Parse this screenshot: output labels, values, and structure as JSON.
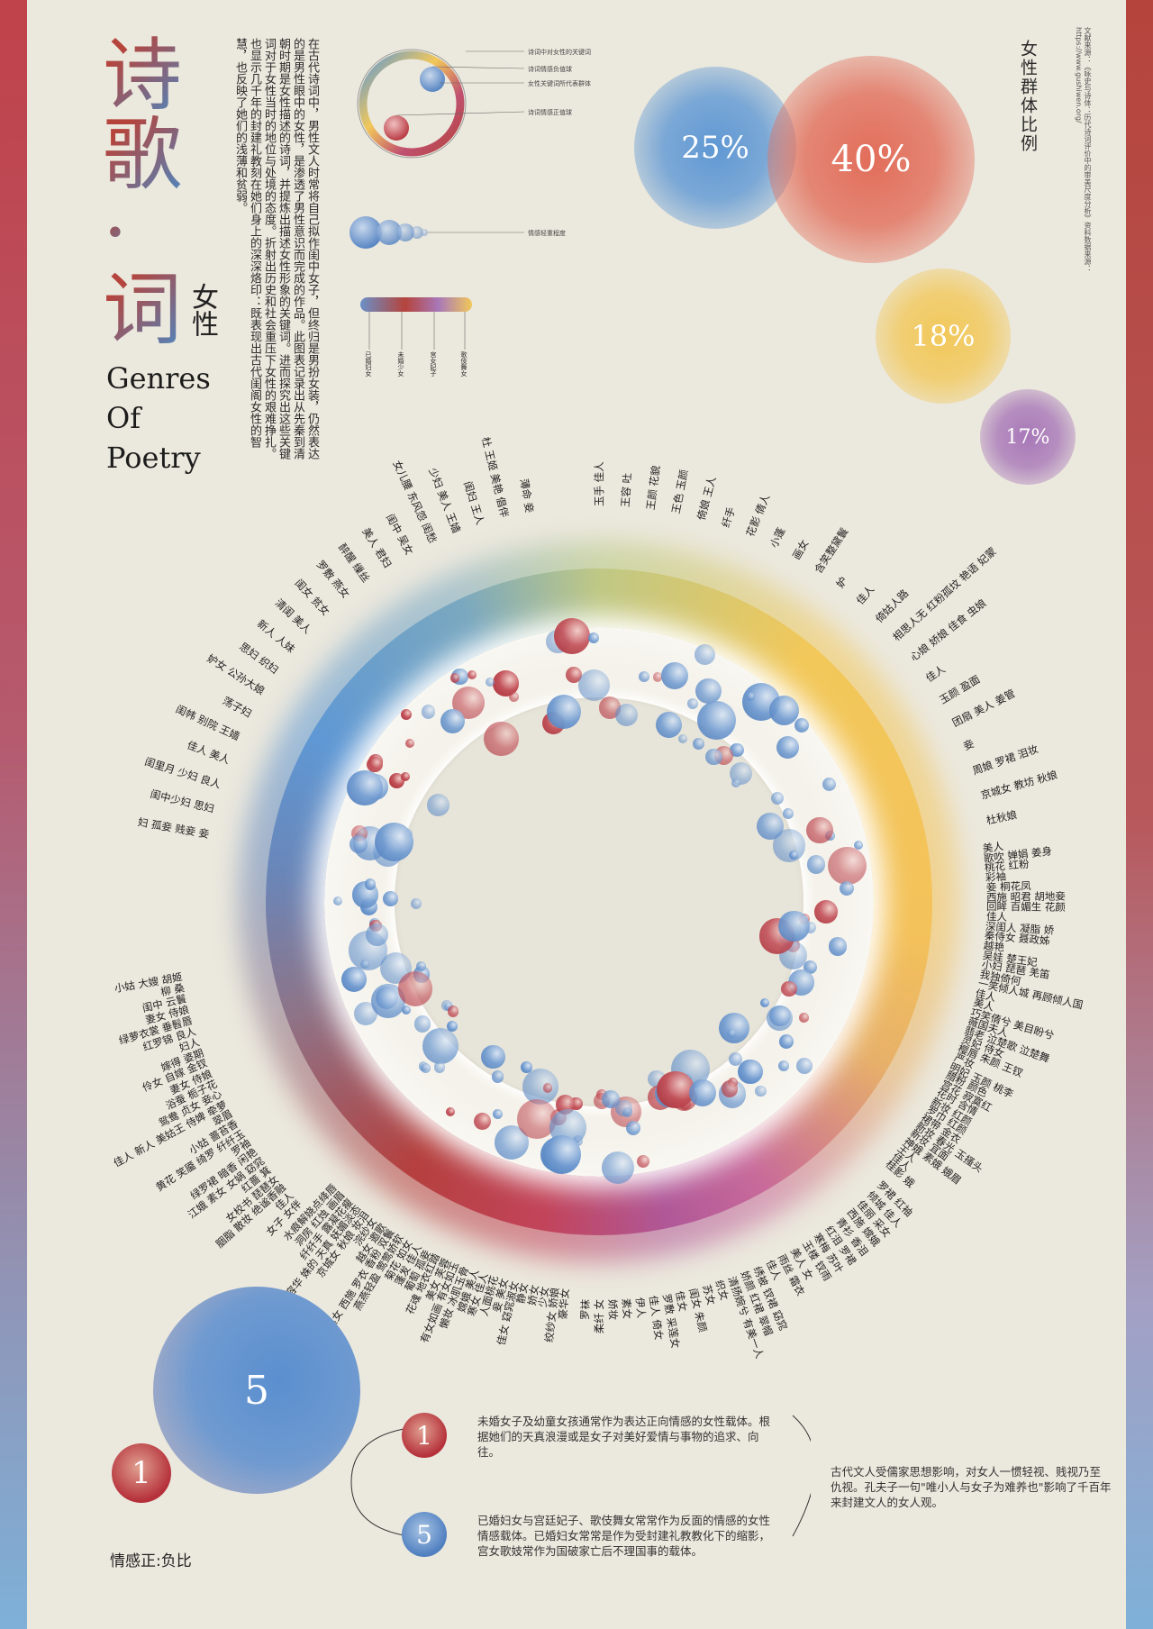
{
  "title": {
    "char1": "诗",
    "char2": "歌",
    "dot": "·",
    "char3": "词",
    "sub": "女性",
    "en1": "Genres",
    "en2": "Of",
    "en3": "Poetry"
  },
  "intro": "在古代诗词中，男性文人时常将自己拟作闺中女子，但终归是男扮女装，仍然表达的是男性眼中的女性，是渗透了男性意识而完成的作品。此图表记录出从先秦到清朝时期是女性描述的诗词，并提炼出描述女性形象的关键词。进而探究出这些关键词对于女性当时的地位与处境的态度。折射出历史和社会重压下女性的艰难挣扎。也显示几千年的封建礼教刻在她们身上的深深烙印：既表现出古代闺阁女性的智慧，也反映了她们的浅薄和贫弱。",
  "legend": {
    "ring_labels": [
      "诗词中对女性的关键词",
      "诗词情感负值球",
      "女性关键词所代表群体",
      "诗词情感正值球"
    ],
    "weight_label": "情感轻重程度",
    "groups": [
      "已婚妇女",
      "未婚少女",
      "宫女妃子",
      "歌伎舞女"
    ]
  },
  "ratio_title": "女性群体比例",
  "ratios": [
    {
      "label": "25%",
      "color": "#5f98d4"
    },
    {
      "label": "40%",
      "color": "#e26d5a"
    },
    {
      "label": "18%",
      "color": "#f2c85a"
    },
    {
      "label": "17%",
      "color": "#a878b8"
    }
  ],
  "source": "文献来源：《咏史与诗体：历代诗词评价中的审美尺度分析》资料数据来源：https://www.gushiwen.org/",
  "keywords": {
    "topleft": [
      "妇 孤妾 贱妾 妾",
      "闺中少妇 思妇",
      "闺里月 少妇 良人",
      "佳人 美人",
      "闺帏 别院 王嫱",
      "荡子妇",
      "妒女 公孙大娘",
      "思妇 织妇",
      "新人 人妹",
      "清闺 美人",
      "闺女 贫女",
      "罗敷 燕女",
      "醉醒 缫丝",
      "美人 君妇",
      "闺中 吴女",
      "女儿腰 东风怨 闺愁",
      "少妇 美人 王嫱",
      "闺妇 王人",
      "杜 王姬 美艳 倡伴",
      "薄命 妾"
    ],
    "left": [
      "小姑 大嫂 胡姬",
      "柳 桑",
      "闺中 云鬟",
      "妻女 侍娘",
      "绿萝衣裳 垂髫唇",
      "红罗锦 良人",
      "妇人",
      "嫁得 婆期",
      "伶女 自嫁 金钗",
      "妻女 侍娘",
      "浴蚕 栀子花",
      "鸳鸯 贞女 妾心",
      "佳人 新人 美姑王 侍婢 牵萝",
      "翠眉",
      "小姑 蔷苔香",
      "黄花 笑靥 绮罗 纤纤玉",
      "罗袖",
      "绿罗裙 暗香 闲艳",
      "江娥 素女 女娲 窈窕",
      "红蔷 箕",
      "女校书 琵琶女",
      "胭脂 散妆 绝谧香融",
      "佳人",
      "女子 女伴"
    ],
    "bottomleft": [
      "水痕解娆点绛唇",
      "洞房 红烛 画眉",
      "纤纤手 露凝花瘦",
      "容华 姝的 天真 妩媚淡态",
      "京城女 秋娘 妆泪",
      "浣纱女",
      "越女 邀歌",
      "溪女 西施 罗衣 香粉 双鬟",
      "燕燕轻盈 莺莺娇软",
      "菊花 如女",
      "蓬发 佳人",
      "葡萄 孤妾",
      "花魂 地衣红踏",
      "美女 芙蓉",
      "有女如画 有女如玉",
      "懒妆 冰肌玉骨",
      "嫦娥 美人",
      "寒女 佳人",
      "人面桃花",
      "妾 美女",
      "佳女 窈窕淑女",
      "静女",
      "娇女",
      "少女",
      "绞纱女 娇娘",
      "豪华女"
    ],
    "bottomright": [
      "罗袜",
      "柔纤 女",
      "娇妆",
      "素女",
      "伊人",
      "佳人 倚女",
      "罗敷 采莲女",
      "佳女",
      "闺女 朱颜",
      "苏女",
      "织女",
      "清扬婉兮 有美一人",
      "娇颜 红裙 翠帽",
      "绣被 钗裙 窈窕",
      "佳人",
      "雨丝 霜衣",
      "美人 女",
      "玉楼 钗雨",
      "寒梅 苏叶",
      "红泪 罗裙",
      "青衫 香泪",
      "西施 嫦娥",
      "佳丽 采女",
      "倾城 佳人",
      "罗裙 红袖"
    ],
    "right": [
      "美人",
      "歌吹 婵娟 姜身",
      "桃花 红粉",
      "彩袖",
      "妾 桐花凤",
      "西施 昭君 胡地妾",
      "回眸 百媚生 花颜",
      "佳人",
      "深闺人 凝脂 娇",
      "秦侍女 聂政姊",
      "越艳",
      "吴娃 楚王妃",
      "小妇 琵琶 羌笛",
      "我独倚何",
      "一笑倾人城 再顾倾人国",
      "佳人",
      "美人",
      "巧笑倩兮 美目盼兮",
      "薇国夫人",
      "翡老 泣楚歌 泣楚舞",
      "灵妃 侍女",
      "樱唇 朱颜 王钗",
      "严妆",
      "明妃 玉颜 桃李",
      "腊粉 颜色",
      "宫花 寂寞红",
      "花时 含情",
      "新妆 红颜",
      "罗巾 红颜",
      "裙带 金衣",
      "新妆 春光 玉搔头",
      "新妆 宜面",
      "神娥 素娥 娥眉",
      "王人",
      "佳人",
      "桂影 娥"
    ],
    "topright": [
      "玉手 佳人",
      "王容 吐",
      "王颜 花貌",
      "王色 玉颜",
      "倚娘 王人",
      "纤手",
      "花影 倩人",
      "小蓬",
      "画女",
      "含笑整黛鬟",
      "妒",
      "佳人",
      "倚姑人路",
      "相思人无 红粉孤坟 艳语 妃蒙",
      "心娘 娇娘 佳食 虫娘",
      "佳人",
      "玉颜 盈面",
      "团扇 美人 姜管",
      "妾",
      "周娘 罗裙 泪妆",
      "京城女 教坊 秋娘",
      "杜秋娘"
    ]
  },
  "bottom": {
    "pos_num": "1",
    "neg_num": "5",
    "ratio_label": "情感正:负比",
    "item1_num": "1",
    "item1_text": "未婚女子及幼童女孩通常作为表达正向情感的女性载体。根据她们的天真浪漫或是女子对美好爱情与事物的追求、向往。",
    "item2_num": "5",
    "item2_text": "已婚妇女与宫廷妃子、歌伎舞女常常作为反面的情感的女性情感载体。已婚妇女常常是作为受封建礼教教化下的缩影，宫女歌妓常作为国破家亡后不理国事的载体。",
    "summary": "古代文人受儒家思想影响，对女人一惯轻视、贱视乃至仇视。孔夫子一句\"唯小人与女子为难养也\"影响了千百年来封建文人的女人观。"
  }
}
